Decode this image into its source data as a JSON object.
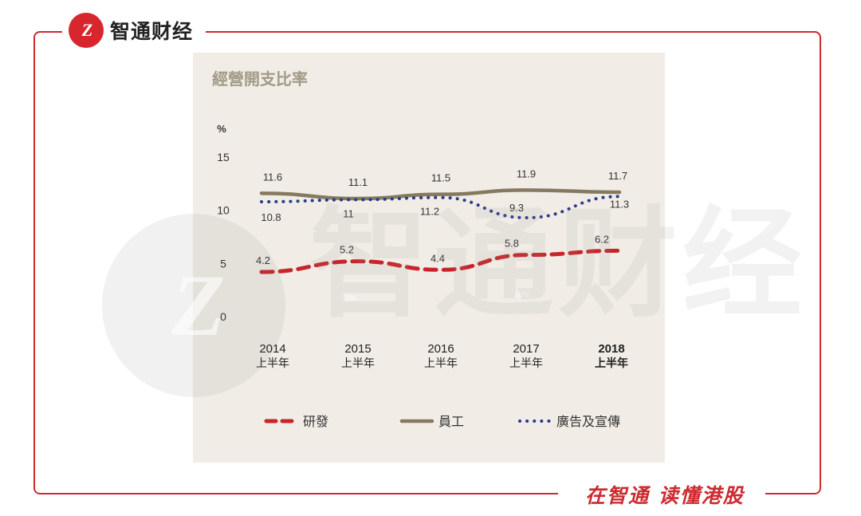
{
  "header": {
    "logo_glyph": "Z",
    "brand_name": "智通财经"
  },
  "footer": {
    "slogan": "在智通  读懂港股"
  },
  "watermark": {
    "glyph": "Z",
    "text": "智通财经"
  },
  "chart_data": {
    "type": "line",
    "title": "經營開支比率",
    "ylabel": "%",
    "ylim": [
      0,
      15
    ],
    "yticks": [
      0,
      5,
      10,
      15
    ],
    "categories": [
      [
        "2014",
        "上半年"
      ],
      [
        "2015",
        "上半年"
      ],
      [
        "2016",
        "上半年"
      ],
      [
        "2017",
        "上半年"
      ],
      [
        "2018",
        "上半年"
      ]
    ],
    "bold_category_index": 4,
    "series": [
      {
        "name": "研發",
        "values": [
          4.2,
          5.2,
          4.4,
          5.8,
          6.2
        ],
        "color": "#c8252b",
        "style": "dashed"
      },
      {
        "name": "員工",
        "values": [
          11.6,
          11.1,
          11.5,
          11.9,
          11.7
        ],
        "color": "#857a5f",
        "style": "solid"
      },
      {
        "name": "廣告及宣傳",
        "values": [
          10.8,
          11.0,
          11.2,
          9.3,
          11.3
        ],
        "color": "#2a3a8c",
        "style": "dotted"
      }
    ],
    "stray_labels": [
      {
        "text": "3%"
      },
      {
        "text": "11%"
      }
    ],
    "legend_position": "bottom",
    "grid": false
  }
}
